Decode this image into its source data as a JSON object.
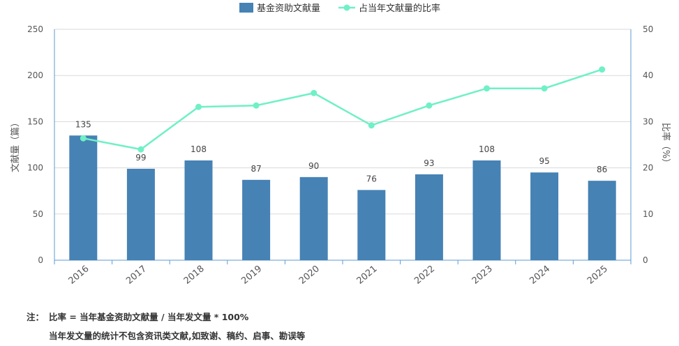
{
  "chart_data": {
    "type": "bar+line",
    "categories": [
      "2016",
      "2017",
      "2018",
      "2019",
      "2020",
      "2021",
      "2022",
      "2023",
      "2024",
      "2025"
    ],
    "series": [
      {
        "name": "基金资助文献量",
        "type": "bar",
        "axis": "left",
        "values": [
          135,
          99,
          108,
          87,
          90,
          76,
          93,
          108,
          95,
          86
        ]
      },
      {
        "name": "占当年文献量的比率",
        "type": "line",
        "axis": "right",
        "values": [
          26.4,
          24.0,
          33.2,
          33.5,
          36.2,
          29.2,
          33.5,
          37.2,
          37.2,
          41.3
        ]
      }
    ],
    "ylabel_left": "文献量（篇）",
    "ylabel_right": "比率（%）",
    "ylim_left": [
      0,
      250
    ],
    "ylim_right": [
      0,
      50
    ],
    "yticks_left": [
      0,
      50,
      100,
      150,
      200,
      250
    ],
    "yticks_right": [
      0,
      10,
      20,
      30,
      40,
      50
    ],
    "grid": true,
    "legend": "top-center"
  },
  "colors": {
    "bar": "#4682b4",
    "line": "#6ff0c6",
    "marker": "#6ff0c6",
    "grid": "#d9d9d9",
    "axis": "#5b9bd5"
  },
  "notes": {
    "prefix": "注：",
    "line1": "比率 = 当年基金资助文献量 / 当年发文量 * 100%",
    "line2": "当年发文量的统计不包含资讯类文献,如致谢、稿约、启事、勘误等"
  }
}
